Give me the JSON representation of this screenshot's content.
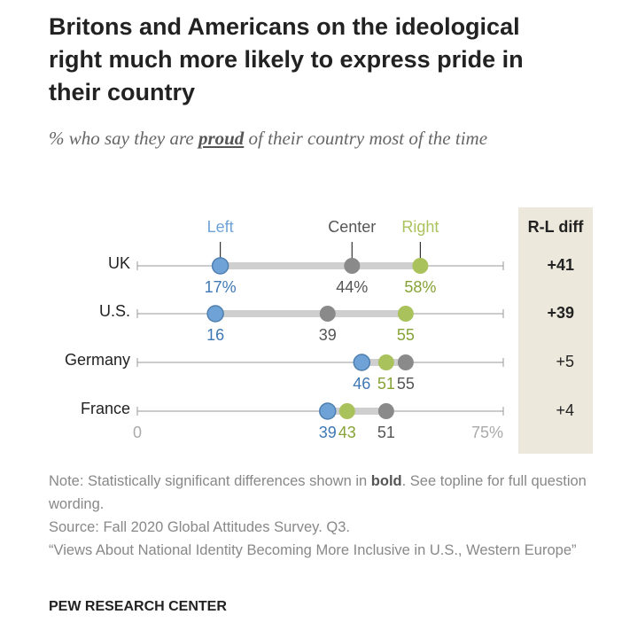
{
  "title": "Britons and Americans on the ideological right much more likely to express pride in their country",
  "subtitle": {
    "before": "% who say they are ",
    "emphasis": "proud",
    "after": " of their country most of the time"
  },
  "chart_data": {
    "type": "dot",
    "categories": [
      "UK",
      "U.S.",
      "Germany",
      "France"
    ],
    "series": [
      {
        "name": "Left",
        "color": "#6fa3d8",
        "values": [
          17,
          16,
          46,
          39
        ],
        "value_labels": [
          "17%",
          "16",
          "46",
          "39"
        ]
      },
      {
        "name": "Center",
        "color": "#8a8a8a",
        "values": [
          44,
          39,
          55,
          51
        ],
        "value_labels": [
          "44%",
          "39",
          "55",
          "51"
        ]
      },
      {
        "name": "Right",
        "color": "#a9c25c",
        "values": [
          58,
          55,
          51,
          43
        ],
        "value_labels": [
          "58%",
          "55",
          "51",
          "43"
        ]
      }
    ],
    "xlim": [
      0,
      75
    ],
    "xticks": [
      0,
      {
        "value": 75,
        "label": "75%"
      }
    ],
    "diff": {
      "title": "R-L diff",
      "values": [
        41,
        39,
        5,
        4
      ],
      "value_labels": [
        "+41",
        "+39",
        "+5",
        "+4"
      ],
      "bold": [
        true,
        true,
        false,
        false
      ]
    }
  },
  "note": {
    "before": "Note: Statistically significant differences shown in ",
    "emphasis": "bold",
    "after": ". See topline for full question wording."
  },
  "source": "Source: Fall 2020 Global Attitudes Survey. Q3.",
  "report": "“Views About National Identity Becoming More Inclusive in U.S., Western Europe”",
  "footer": "PEW RESEARCH CENTER"
}
